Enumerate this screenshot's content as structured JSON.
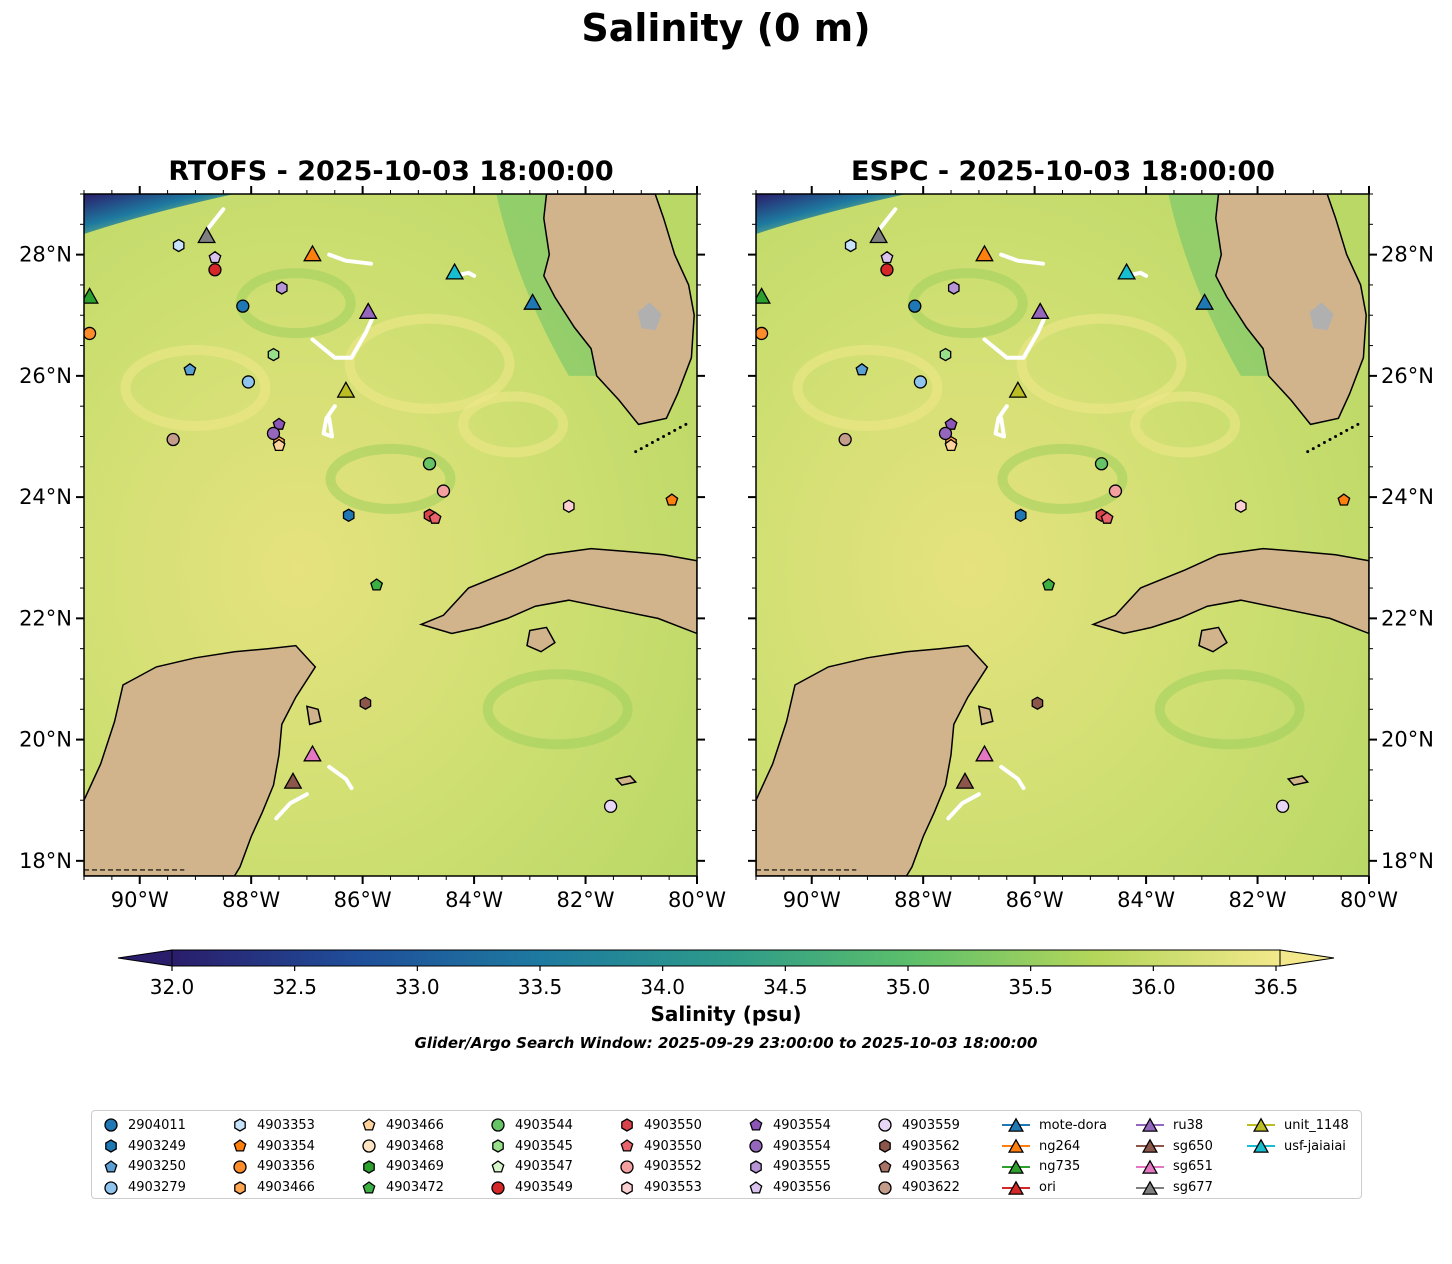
{
  "title": "Salinity (0 m)",
  "panels": [
    {
      "id": "rtofs",
      "title": "RTOFS - 2025-10-03 18:00:00"
    },
    {
      "id": "espc",
      "title": "ESPC - 2025-10-03 18:00:00"
    }
  ],
  "axes": {
    "lon_ticks": [
      "90°W",
      "88°W",
      "86°W",
      "84°W",
      "82°W",
      "80°W"
    ],
    "lat_ticks": [
      "28°N",
      "26°N",
      "24°N",
      "22°N",
      "20°N",
      "18°N"
    ]
  },
  "colorbar": {
    "label": "Salinity (psu)",
    "ticks": [
      "32.0",
      "32.5",
      "33.0",
      "33.5",
      "34.0",
      "34.5",
      "35.0",
      "35.5",
      "36.0",
      "36.5"
    ],
    "colors": [
      "#2a1d6b",
      "#1f4e9a",
      "#1e7aa0",
      "#2d9a8a",
      "#5cbf6b",
      "#b4d65a",
      "#f3e98c"
    ]
  },
  "search_window": "Glider/Argo Search Window: 2025-09-29 23:00:00 to 2025-10-03 18:00:00",
  "colors": {
    "land": "#d2b48c",
    "ocean": "#c2dd6e",
    "lake": "#a6c8e8",
    "track": "#ffffff"
  },
  "legend": [
    {
      "label": "2904011",
      "marker": "circle",
      "color": "#1f77b4"
    },
    {
      "label": "4903249",
      "marker": "hexagon",
      "color": "#1f77b4"
    },
    {
      "label": "4903250",
      "marker": "pentagon",
      "color": "#5a9fd4"
    },
    {
      "label": "4903279",
      "marker": "circle",
      "color": "#8ec4ee"
    },
    {
      "label": "4903353",
      "marker": "hexagon",
      "color": "#c6e3fb"
    },
    {
      "label": "4903354",
      "marker": "pentagon",
      "color": "#ff7f0e"
    },
    {
      "label": "4903356",
      "marker": "circle",
      "color": "#ff8c2a"
    },
    {
      "label": "4903466",
      "marker": "hexagon",
      "color": "#ffa54f"
    },
    {
      "label": "4903466",
      "marker": "pentagon",
      "color": "#ffd39b"
    },
    {
      "label": "4903468",
      "marker": "circle",
      "color": "#ffe4c4"
    },
    {
      "label": "4903469",
      "marker": "hexagon",
      "color": "#2ca02c"
    },
    {
      "label": "4903472",
      "marker": "pentagon",
      "color": "#3cb043"
    },
    {
      "label": "4903544",
      "marker": "circle",
      "color": "#66c466"
    },
    {
      "label": "4903545",
      "marker": "hexagon",
      "color": "#98df8a"
    },
    {
      "label": "4903547",
      "marker": "pentagon",
      "color": "#d6f5c8"
    },
    {
      "label": "4903549",
      "marker": "circle",
      "color": "#d62728"
    },
    {
      "label": "4903550",
      "marker": "hexagon",
      "color": "#d9434b"
    },
    {
      "label": "4903550",
      "marker": "pentagon",
      "color": "#e8636a"
    },
    {
      "label": "4903552",
      "marker": "circle",
      "color": "#f4a0a0"
    },
    {
      "label": "4903553",
      "marker": "hexagon",
      "color": "#fbd0d0"
    },
    {
      "label": "4903554",
      "marker": "pentagon",
      "color": "#8c56b8"
    },
    {
      "label": "4903554",
      "marker": "circle",
      "color": "#9467bd"
    },
    {
      "label": "4903555",
      "marker": "hexagon",
      "color": "#b694d6"
    },
    {
      "label": "4903556",
      "marker": "pentagon",
      "color": "#d9c2ee"
    },
    {
      "label": "4903559",
      "marker": "circle",
      "color": "#e8d6f7"
    },
    {
      "label": "4903562",
      "marker": "hexagon",
      "color": "#8c564b"
    },
    {
      "label": "4903563",
      "marker": "pentagon",
      "color": "#a87264"
    },
    {
      "label": "4903622",
      "marker": "circle",
      "color": "#c49c8a"
    },
    {
      "label": "mote-dora",
      "marker": "triangle-line",
      "color": "#1f77b4"
    },
    {
      "label": "ng264",
      "marker": "triangle-line",
      "color": "#ff7f0e"
    },
    {
      "label": "ng735",
      "marker": "triangle-line",
      "color": "#2ca02c"
    },
    {
      "label": "ori",
      "marker": "triangle-line",
      "color": "#d62728"
    },
    {
      "label": "ru38",
      "marker": "triangle-line",
      "color": "#9467bd"
    },
    {
      "label": "sg650",
      "marker": "triangle-line",
      "color": "#8c564b"
    },
    {
      "label": "sg651",
      "marker": "triangle-line",
      "color": "#e377c2"
    },
    {
      "label": "sg677",
      "marker": "triangle-line",
      "color": "#7f7f7f"
    },
    {
      "label": "unit_1148",
      "marker": "triangle-line",
      "color": "#bcbd22"
    },
    {
      "label": "usf-jaiaiai",
      "marker": "triangle-line",
      "color": "#17becf"
    }
  ],
  "markers": [
    {
      "lon": -90.9,
      "lat": 27.3,
      "marker": "triangle",
      "color": "#2ca02c"
    },
    {
      "lon": -90.9,
      "lat": 26.7,
      "marker": "circle",
      "color": "#ff8c2a"
    },
    {
      "lon": -89.3,
      "lat": 28.15,
      "marker": "hexagon",
      "color": "#c6e3fb"
    },
    {
      "lon": -88.8,
      "lat": 28.3,
      "marker": "triangle",
      "color": "#7f7f7f"
    },
    {
      "lon": -88.65,
      "lat": 27.95,
      "marker": "pentagon",
      "color": "#d9c2ee"
    },
    {
      "lon": -88.65,
      "lat": 27.75,
      "marker": "circle",
      "color": "#d62728"
    },
    {
      "lon": -88.15,
      "lat": 27.15,
      "marker": "circle",
      "color": "#1f77b4"
    },
    {
      "lon": -87.45,
      "lat": 27.45,
      "marker": "hexagon",
      "color": "#b694d6"
    },
    {
      "lon": -87.6,
      "lat": 26.35,
      "marker": "hexagon",
      "color": "#98df8a"
    },
    {
      "lon": -89.1,
      "lat": 26.1,
      "marker": "pentagon",
      "color": "#5a9fd4"
    },
    {
      "lon": -88.05,
      "lat": 25.9,
      "marker": "circle",
      "color": "#8ec4ee"
    },
    {
      "lon": -86.9,
      "lat": 28.0,
      "marker": "triangle",
      "color": "#ff7f0e"
    },
    {
      "lon": -85.9,
      "lat": 27.05,
      "marker": "triangle",
      "color": "#9467bd"
    },
    {
      "lon": -86.3,
      "lat": 25.75,
      "marker": "triangle",
      "color": "#bcbd22"
    },
    {
      "lon": -84.35,
      "lat": 27.7,
      "marker": "triangle",
      "color": "#17becf"
    },
    {
      "lon": -82.95,
      "lat": 27.2,
      "marker": "triangle",
      "color": "#1f77b4"
    },
    {
      "lon": -89.4,
      "lat": 24.95,
      "marker": "circle",
      "color": "#c49c8a"
    },
    {
      "lon": -87.5,
      "lat": 25.2,
      "marker": "pentagon",
      "color": "#8c56b8"
    },
    {
      "lon": -87.5,
      "lat": 24.9,
      "marker": "hexagon",
      "color": "#ffa54f"
    },
    {
      "lon": -87.6,
      "lat": 25.05,
      "marker": "circle",
      "color": "#9467bd"
    },
    {
      "lon": -87.5,
      "lat": 24.85,
      "marker": "pentagon",
      "color": "#ffd39b"
    },
    {
      "lon": -84.8,
      "lat": 24.55,
      "marker": "circle",
      "color": "#66c466"
    },
    {
      "lon": -84.55,
      "lat": 24.1,
      "marker": "circle",
      "color": "#f4a0a0"
    },
    {
      "lon": -86.25,
      "lat": 23.7,
      "marker": "hexagon",
      "color": "#1f77b4"
    },
    {
      "lon": -84.8,
      "lat": 23.7,
      "marker": "hexagon",
      "color": "#d9434b"
    },
    {
      "lon": -84.7,
      "lat": 23.65,
      "marker": "pentagon",
      "color": "#e8636a"
    },
    {
      "lon": -82.3,
      "lat": 23.85,
      "marker": "hexagon",
      "color": "#fbd0d0"
    },
    {
      "lon": -80.45,
      "lat": 23.95,
      "marker": "pentagon",
      "color": "#ff7f0e"
    },
    {
      "lon": -85.75,
      "lat": 22.55,
      "marker": "pentagon",
      "color": "#3cb043"
    },
    {
      "lon": -85.95,
      "lat": 20.6,
      "marker": "hexagon",
      "color": "#8c564b"
    },
    {
      "lon": -86.9,
      "lat": 19.75,
      "marker": "triangle",
      "color": "#e377c2"
    },
    {
      "lon": -87.25,
      "lat": 19.3,
      "marker": "triangle",
      "color": "#8c564b"
    },
    {
      "lon": -81.55,
      "lat": 18.9,
      "marker": "circle",
      "color": "#e8d6f7"
    }
  ],
  "tracks": [
    [
      [
        -88.8,
        28.4
      ],
      [
        -88.5,
        28.75
      ]
    ],
    [
      [
        -86.6,
        28.0
      ],
      [
        -86.3,
        27.9
      ],
      [
        -85.85,
        27.85
      ]
    ],
    [
      [
        -84.35,
        27.65
      ],
      [
        -84.1,
        27.7
      ],
      [
        -84.0,
        27.65
      ]
    ],
    [
      [
        -86.9,
        26.6
      ],
      [
        -86.5,
        26.3
      ],
      [
        -86.2,
        26.3
      ],
      [
        -85.95,
        26.7
      ],
      [
        -85.8,
        27.0
      ]
    ],
    [
      [
        -86.5,
        25.5
      ],
      [
        -86.65,
        25.3
      ],
      [
        -86.7,
        25.05
      ],
      [
        -86.55,
        25.0
      ],
      [
        -86.6,
        25.3
      ]
    ],
    [
      [
        -86.6,
        19.55
      ],
      [
        -86.3,
        19.35
      ],
      [
        -86.2,
        19.2
      ]
    ],
    [
      [
        -87.0,
        19.1
      ],
      [
        -87.3,
        18.95
      ],
      [
        -87.55,
        18.7
      ]
    ]
  ]
}
